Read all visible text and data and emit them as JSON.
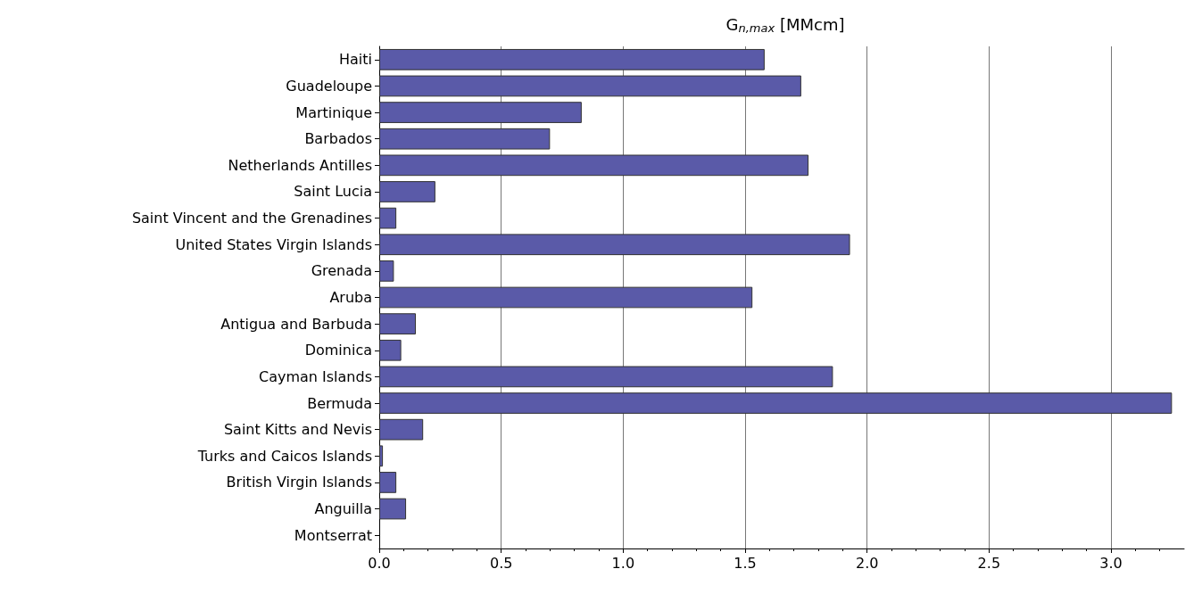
{
  "chart_data": {
    "type": "bar",
    "orientation": "horizontal",
    "xlabel": "G$_{n,max}$ [MMcm]",
    "categories": [
      "Haiti",
      "Guadeloupe",
      "Martinique",
      "Barbados",
      "Netherlands Antilles",
      "Saint Lucia",
      "Saint Vincent and the Grenadines",
      "United States Virgin Islands",
      "Grenada",
      "Aruba",
      "Antigua and Barbuda",
      "Dominica",
      "Cayman Islands",
      "Bermuda",
      "Saint Kitts and Nevis",
      "Turks and Caicos Islands",
      "British Virgin Islands",
      "Anguilla",
      "Montserrat"
    ],
    "values": [
      1.58,
      1.73,
      0.83,
      0.7,
      1.76,
      0.23,
      0.07,
      1.93,
      0.06,
      1.53,
      0.15,
      0.09,
      1.86,
      3.25,
      0.18,
      0.015,
      0.07,
      0.11,
      0
    ],
    "color": "#5a5aa8",
    "xlim": [
      0,
      3.3
    ],
    "xticks": [
      {
        "value": 0,
        "label": "0.0"
      },
      {
        "value": 0.5,
        "label": "0.5"
      },
      {
        "value": 1,
        "label": "1.0"
      },
      {
        "value": 1.5,
        "label": "1.5"
      },
      {
        "value": 2,
        "label": "2.0"
      },
      {
        "value": 2.5,
        "label": "2.5"
      },
      {
        "value": 3,
        "label": "3.0"
      }
    ],
    "grid": "x"
  }
}
